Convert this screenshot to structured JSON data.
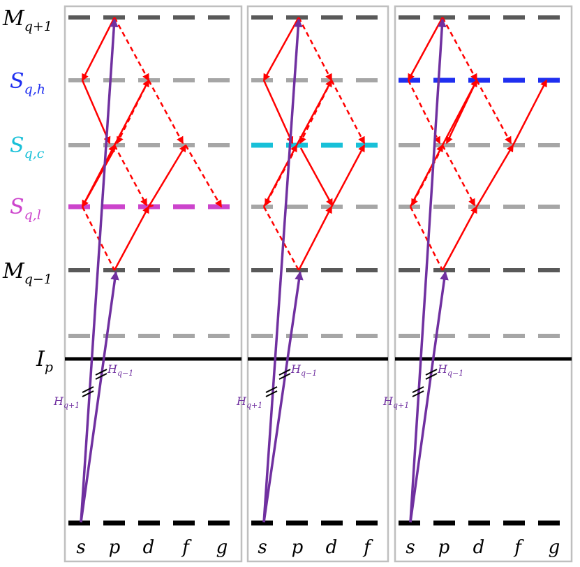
{
  "colors": {
    "purple": "#7030a0",
    "red": "#ff0000",
    "blue": "#1f2ff0",
    "cyan": "#18c0d8",
    "magenta": "#cc44cc",
    "dark_gray": "#595959",
    "light_gray": "#a6a6a6",
    "black": "#000000",
    "frame": "#bfbfbf"
  },
  "level_labels": {
    "m_plus": {
      "main": "M",
      "sub": "q+1"
    },
    "s_h": {
      "main": "S",
      "sub": "q,h"
    },
    "s_c": {
      "main": "S",
      "sub": "q,c"
    },
    "s_l": {
      "main": "S",
      "sub": "q,l"
    },
    "m_minus": {
      "main": "M",
      "sub": "q−1"
    },
    "ip": {
      "main": "I",
      "sub": "p"
    }
  },
  "harmonic_labels": {
    "plus": {
      "main": "H",
      "sub": "q+1"
    },
    "minus": {
      "main": "H",
      "sub": "q−1"
    }
  },
  "panels": [
    {
      "name": "panel-1",
      "l_labels": [
        "s",
        "p",
        "d",
        "f",
        "g"
      ],
      "highlight": "S_q,l"
    },
    {
      "name": "panel-2",
      "l_labels": [
        "s",
        "p",
        "d",
        "f"
      ],
      "highlight": "S_q,c"
    },
    {
      "name": "panel-3",
      "l_labels": [
        "s",
        "p",
        "d",
        "f",
        "g"
      ],
      "highlight": "S_q,h"
    }
  ]
}
